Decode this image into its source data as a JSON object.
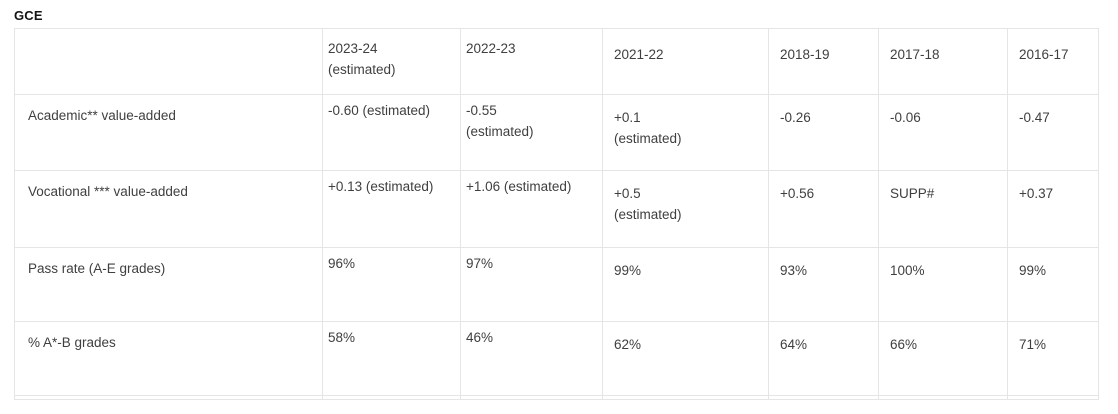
{
  "title": "GCE",
  "table": {
    "columns": [
      "",
      "2023-24\n(estimated)",
      "2022-23",
      "2021-22",
      "2018-19",
      "2017-18",
      "2016-17"
    ],
    "rows": [
      {
        "label": "Academic** value-added",
        "values": [
          "-0.60 (estimated)",
          "-0.55\n(estimated)",
          "+0.1\n(estimated)",
          "-0.26",
          "-0.06",
          "-0.47"
        ]
      },
      {
        "label": "Vocational *** value-added",
        "values": [
          "+0.13 (estimated)",
          "+1.06 (estimated)",
          "+0.5\n(estimated)",
          "+0.56",
          "SUPP#",
          "+0.37"
        ]
      },
      {
        "label": "Pass rate (A-E grades)",
        "values": [
          "96%",
          "97%",
          "99%",
          "93%",
          "100%",
          "99%"
        ]
      },
      {
        "label": "% A*-B grades",
        "values": [
          "58%",
          "46%",
          "62%",
          "64%",
          "66%",
          "71%"
        ]
      }
    ]
  }
}
